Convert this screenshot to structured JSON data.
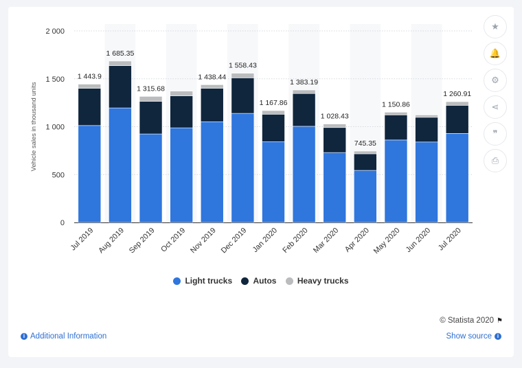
{
  "chart_data": {
    "type": "bar",
    "stacked": true,
    "categories": [
      "Jul 2019",
      "Aug 2019",
      "Sep 2019",
      "Oct 2019",
      "Nov 2019",
      "Dec 2019",
      "Jan 2020",
      "Feb 2020",
      "Mar 2020",
      "Apr 2020",
      "May 2020",
      "Jun 2020",
      "Jul 2020"
    ],
    "series": [
      {
        "name": "Light trucks",
        "color": "#2f76dd",
        "values": [
          1012,
          1196,
          924,
          988,
          1052,
          1139,
          842,
          1004,
          730,
          544,
          861,
          840,
          929
        ]
      },
      {
        "name": "Autos",
        "color": "#10263d",
        "values": [
          389,
          441,
          341,
          334,
          348,
          371,
          288,
          342,
          261,
          173,
          262,
          258,
          294
        ]
      },
      {
        "name": "Heavy trucks",
        "color": "#bbbcbe",
        "values": [
          43,
          48,
          51,
          49,
          38,
          48,
          38,
          37,
          37,
          28,
          28,
          24,
          38
        ]
      }
    ],
    "totals": [
      1443.9,
      1685.35,
      1315.68,
      null,
      1438.44,
      1558.43,
      1167.86,
      1383.19,
      1028.43,
      745.35,
      1150.86,
      null,
      1260.91
    ],
    "total_labels": [
      "1 443.9",
      "1 685.35",
      "1 315.68",
      "",
      "1 438.44",
      "1 558.43",
      "1 167.86",
      "1 383.19",
      "1 028.43",
      "745.35",
      "1 150.86",
      "",
      "1 260.91"
    ],
    "ylabel": "Vehicle sales in thousand units",
    "xlabel": "",
    "ylim": [
      0,
      2000
    ],
    "yticks": [
      0,
      500,
      1000,
      1500,
      2000
    ],
    "ytick_labels": [
      "0",
      "500",
      "1 000",
      "1 500",
      "2 000"
    ],
    "grid": true,
    "legend_position": "bottom"
  },
  "legend": {
    "items": [
      {
        "label": "Light trucks",
        "color": "#2f76dd"
      },
      {
        "label": "Autos",
        "color": "#10263d"
      },
      {
        "label": "Heavy trucks",
        "color": "#bbbcbe"
      }
    ]
  },
  "toolbar": {
    "buttons": [
      {
        "name": "star-icon",
        "glyph": "★"
      },
      {
        "name": "bell-icon",
        "glyph": "🔔"
      },
      {
        "name": "gear-icon",
        "glyph": "⚙"
      },
      {
        "name": "share-icon",
        "glyph": "⋖"
      },
      {
        "name": "quote-icon",
        "glyph": "❞"
      },
      {
        "name": "print-icon",
        "glyph": "⎙"
      }
    ]
  },
  "footer": {
    "copyright": "© Statista 2020",
    "additional_info": "Additional Information",
    "show_source": "Show source"
  }
}
